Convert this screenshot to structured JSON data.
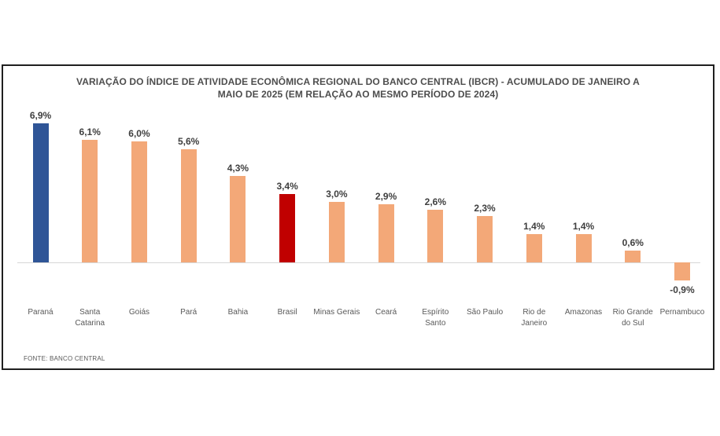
{
  "page": {
    "background_color": "#ffffff",
    "frame_border_color": "#1f1f1f"
  },
  "chart_data": {
    "type": "bar",
    "title": "VARIAÇÃO DO ÍNDICE DE ATIVIDADE ECONÔMICA REGIONAL DO BANCO CENTRAL (IBCR) - ACUMULADO DE JANEIRO A MAIO DE 2025 (EM RELAÇÃO AO MESMO PERÍODO DE 2024)",
    "source": "FONTE: BANCO CENTRAL",
    "categories": [
      "Paraná",
      "Santa Catarina",
      "Goiás",
      "Pará",
      "Bahia",
      "Brasil",
      "Minas Gerais",
      "Ceará",
      "Espírito Santo",
      "São Paulo",
      "Rio de Janeiro",
      "Amazonas",
      "Rio Grande do Sul",
      "Pernambuco"
    ],
    "values": [
      6.9,
      6.1,
      6.0,
      5.6,
      4.3,
      3.4,
      3.0,
      2.9,
      2.6,
      2.3,
      1.4,
      1.4,
      0.6,
      -0.9
    ],
    "value_labels": [
      "6,9%",
      "6,1%",
      "6,0%",
      "5,6%",
      "4,3%",
      "3,4%",
      "3,0%",
      "2,9%",
      "2,6%",
      "2,3%",
      "1,4%",
      "1,4%",
      "0,6%",
      "-0,9%"
    ],
    "value_suffix": "%",
    "bar_colors": {
      "default": "#F3A878",
      "Paraná": "#2F5597",
      "Brasil": "#C00000"
    },
    "axis": {
      "baseline_value": 0,
      "gridlines": false,
      "ylim": [
        -2,
        8
      ]
    },
    "legend": "none"
  }
}
